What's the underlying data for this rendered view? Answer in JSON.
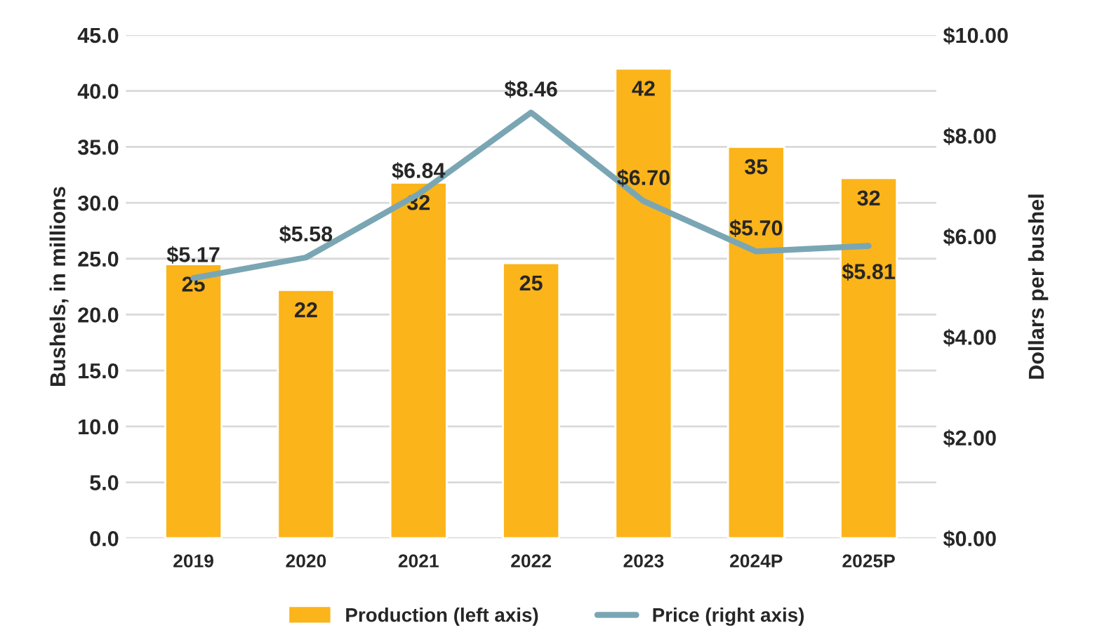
{
  "chart_data": {
    "type": "bar",
    "ylabel": "Bushels, in millions",
    "y2label": "Dollars per bushel",
    "categories": [
      "2019",
      "2020",
      "2021",
      "2022",
      "2023",
      "2024P",
      "2025P"
    ],
    "series": [
      {
        "name": "Production (left axis)",
        "color": "#fbb41a",
        "values": [
          24.5,
          22.2,
          31.8,
          24.6,
          42.0,
          35.0,
          32.2
        ],
        "value_labels": [
          "25",
          "22",
          "32",
          "25",
          "42",
          "35",
          "32"
        ]
      },
      {
        "name": "Price (right axis)",
        "type": "line",
        "axis": "y2",
        "color": "#7aa6b4",
        "values": [
          5.17,
          5.58,
          6.84,
          8.46,
          6.7,
          5.7,
          5.81
        ],
        "value_labels": [
          "$5.17",
          "$5.58",
          "$6.84",
          "$8.46",
          "$6.70",
          "$5.70",
          "$5.81"
        ]
      }
    ],
    "ylim": [
      0,
      45
    ],
    "yticks": [
      {
        "value": 0,
        "label": "0.0"
      },
      {
        "value": 5,
        "label": "5.0"
      },
      {
        "value": 10,
        "label": "10.0"
      },
      {
        "value": 15,
        "label": "15.0"
      },
      {
        "value": 20,
        "label": "20.0"
      },
      {
        "value": 25,
        "label": "25.0"
      },
      {
        "value": 30,
        "label": "30.0"
      },
      {
        "value": 35,
        "label": "35.0"
      },
      {
        "value": 40,
        "label": "40.0"
      },
      {
        "value": 45,
        "label": "45.0"
      }
    ],
    "y2lim": [
      0,
      10
    ],
    "y2ticks": [
      {
        "value": 0,
        "label": "$0.00"
      },
      {
        "value": 2,
        "label": "$2.00"
      },
      {
        "value": 4,
        "label": "$4.00"
      },
      {
        "value": 6,
        "label": "$6.00"
      },
      {
        "value": 8,
        "label": "$8.00"
      },
      {
        "value": 10,
        "label": "$10.00"
      }
    ],
    "grid": "y",
    "legend": "bottom",
    "marker": "none",
    "line_style": "solid"
  }
}
